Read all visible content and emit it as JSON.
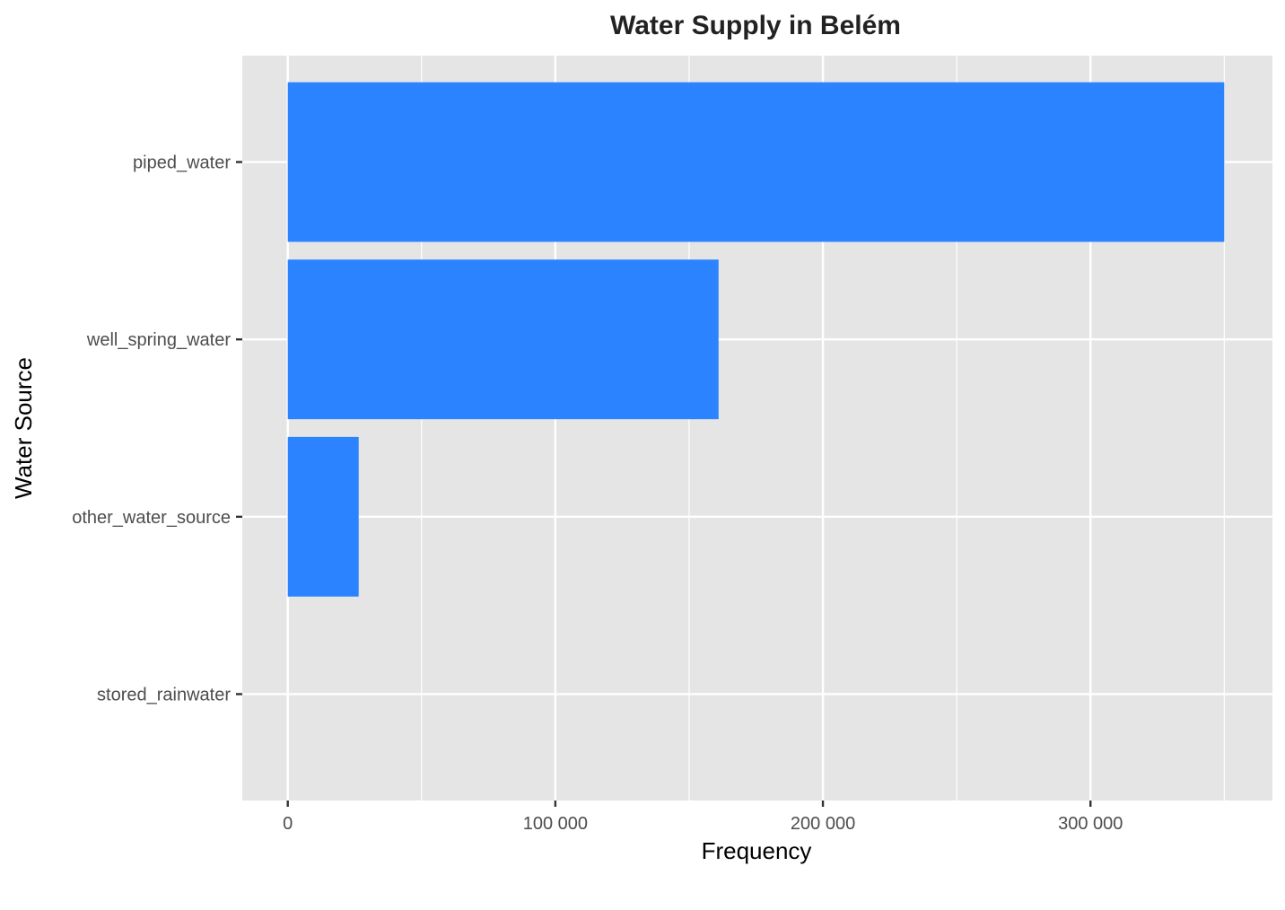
{
  "chart_data": {
    "type": "bar",
    "orientation": "horizontal",
    "title": "Water Supply in Belém",
    "xlabel": "Frequency",
    "ylabel": "Water Source",
    "categories": [
      "piped_water",
      "well_spring_water",
      "other_water_source",
      "stored_rainwater"
    ],
    "values": [
      350000,
      161000,
      26500,
      0
    ],
    "xlim": [
      -17000,
      368000
    ],
    "x_ticks": [
      0,
      100000,
      200000,
      300000
    ],
    "x_tick_labels": [
      "0",
      "100 000",
      "200 000",
      "300 000"
    ],
    "grid": true,
    "legend": "none"
  },
  "colors": {
    "panel_background": "#e5e5e5",
    "grid": "#ffffff",
    "bar": "#2b83ff",
    "tick": "#333333"
  }
}
